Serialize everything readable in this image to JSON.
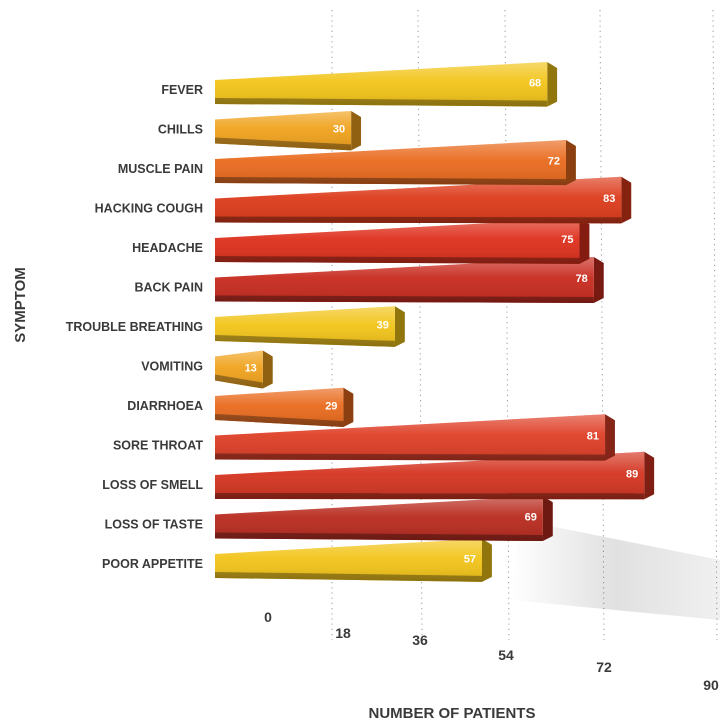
{
  "chart_data": {
    "type": "bar",
    "orientation": "horizontal",
    "xlabel": "NUMBER OF PATIENTS",
    "ylabel": "SYMPTOM",
    "xlim": [
      0,
      90
    ],
    "xticks": [
      0,
      18,
      36,
      54,
      72,
      90
    ],
    "grid": true,
    "categories": [
      "FEVER",
      "CHILLS",
      "MUSCLE PAIN",
      "HACKING COUGH",
      "HEADACHE",
      "BACK PAIN",
      "TROUBLE BREATHING",
      "VOMITING",
      "DIARRHOEA",
      "SORE THROAT",
      "LOSS OF SMELL",
      "LOSS OF TASTE",
      "POOR APPETITE"
    ],
    "values": [
      68,
      30,
      72,
      83,
      75,
      78,
      39,
      13,
      29,
      81,
      89,
      69,
      57
    ],
    "colors": [
      "#f2c418",
      "#f0a21c",
      "#e96a1d",
      "#dd3a1a",
      "#de2f1c",
      "#c82a1e",
      "#f2c418",
      "#f0a21c",
      "#e96a1d",
      "#de3e26",
      "#d43420",
      "#b82a1e",
      "#f2c418"
    ]
  }
}
